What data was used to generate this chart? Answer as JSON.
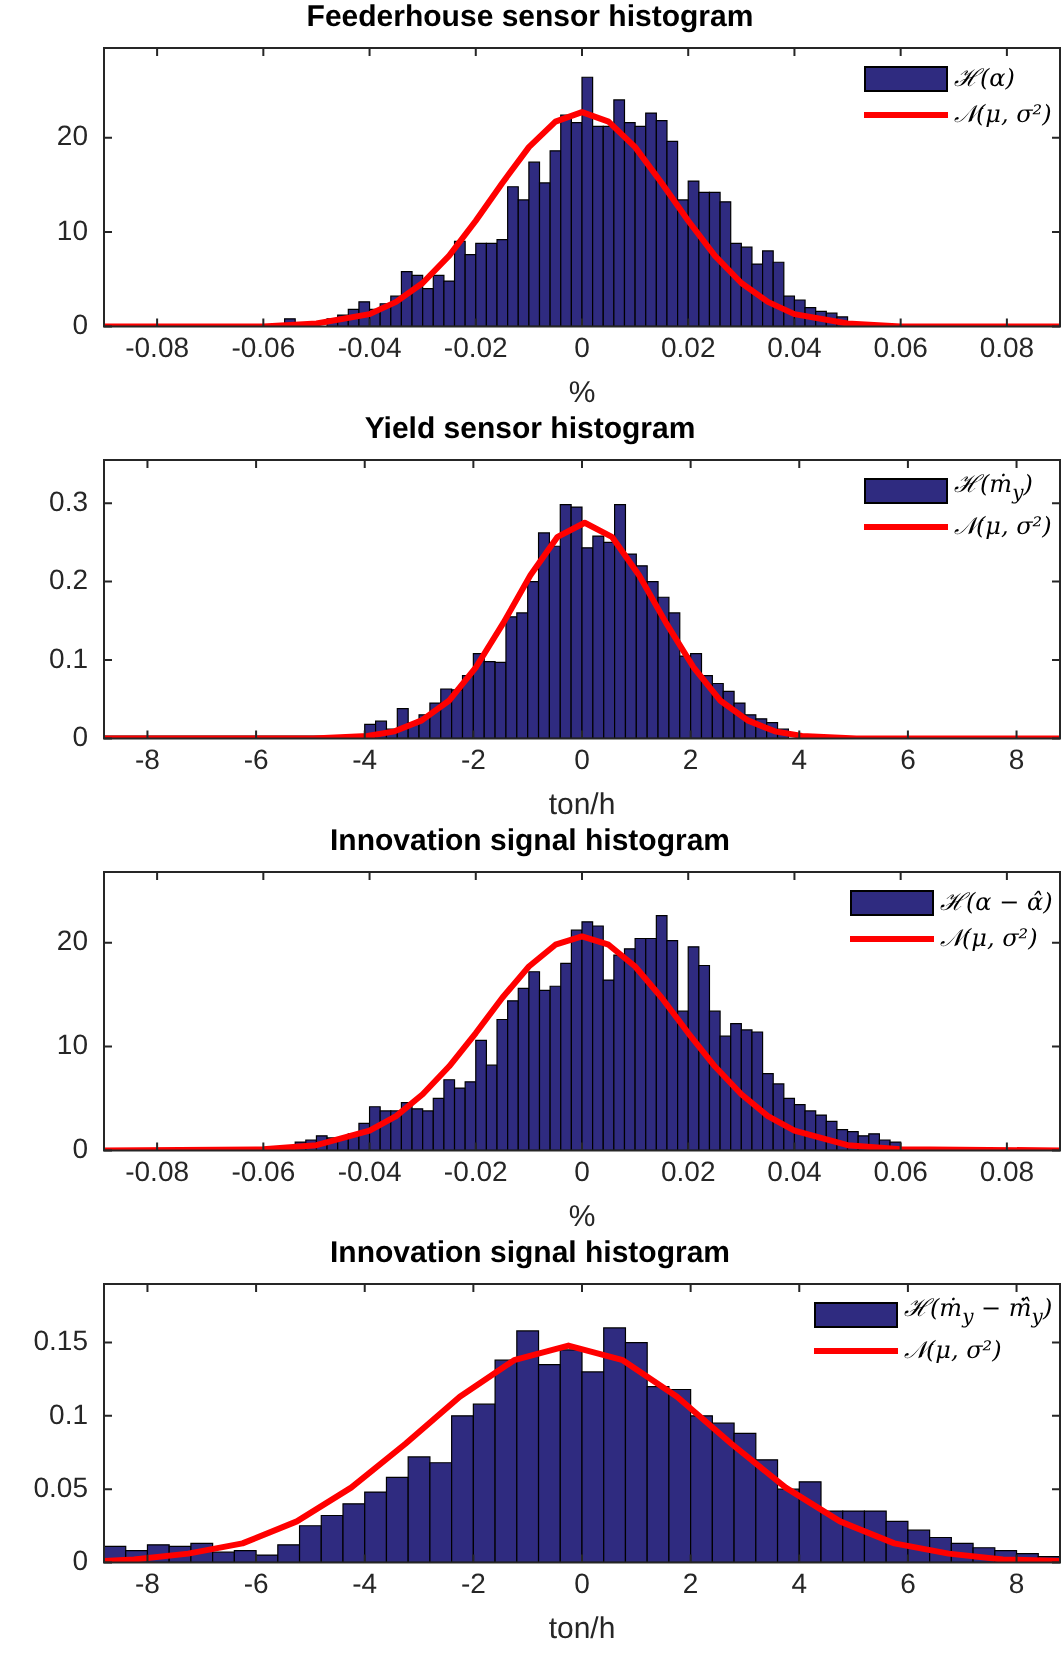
{
  "chart_data": [
    {
      "type": "histogram",
      "title": "Feederhouse sensor histogram",
      "xlabel": "%",
      "xlim": [
        -0.09,
        0.09
      ],
      "xticks": [
        -0.08,
        -0.06,
        -0.04,
        -0.02,
        0,
        0.02,
        0.04,
        0.06,
        0.08
      ],
      "ylim": [
        0,
        29.5
      ],
      "yticks": [
        0,
        10,
        20
      ],
      "legend": "top right",
      "bins": [
        -0.056,
        -0.054,
        -0.048,
        -0.046,
        -0.044,
        -0.042,
        -0.04,
        -0.038,
        -0.036,
        -0.034,
        -0.032,
        -0.03,
        -0.028,
        -0.026,
        -0.024,
        -0.022,
        -0.02,
        -0.018,
        -0.016,
        -0.014,
        -0.012,
        -0.01,
        -0.008,
        -0.006,
        -0.004,
        -0.002,
        0,
        0.002,
        0.004,
        0.006,
        0.008,
        0.01,
        0.012,
        0.014,
        0.016,
        0.018,
        0.02,
        0.022,
        0.024,
        0.026,
        0.028,
        0.03,
        0.032,
        0.034,
        0.036,
        0.038,
        0.04,
        0.042,
        0.044,
        0.046,
        0.048,
        0.05,
        0.054,
        0.056,
        0.058
      ],
      "series": [
        {
          "name": "ℋ(α)",
          "color": "#2f2b80",
          "values": [
            0.8,
            null,
            0.8,
            1.2,
            1.8,
            2.6,
            1.8,
            2.4,
            3.2,
            5.8,
            5.4,
            4.0,
            5.4,
            4.8,
            9.0,
            7.6,
            8.8,
            8.8,
            9.2,
            14.8,
            13.4,
            17.4,
            15.2,
            18.6,
            22.4,
            21.6,
            26.4,
            21.2,
            21.2,
            24.0,
            21.6,
            21.2,
            22.6,
            21.8,
            19.6,
            13.4,
            15.4,
            14.2,
            14.2,
            13.2,
            8.8,
            8.4,
            6.6,
            8.0,
            6.8,
            3.2,
            2.8,
            2.0,
            1.6,
            1.4,
            1.0,
            null,
            0.3,
            0.2
          ]
        },
        {
          "name": "𝒩(μ, σ²)",
          "type": "line",
          "color": "#ff0000",
          "x": [
            -0.09,
            -0.06,
            -0.05,
            -0.04,
            -0.035,
            -0.03,
            -0.025,
            -0.02,
            -0.015,
            -0.01,
            -0.005,
            0,
            0.005,
            0.01,
            0.015,
            0.02,
            0.025,
            0.03,
            0.035,
            0.04,
            0.05,
            0.06,
            0.09
          ],
          "values": [
            0,
            0,
            0.3,
            1.3,
            2.6,
            4.6,
            7.5,
            11.2,
            15.2,
            19.0,
            21.7,
            22.7,
            21.7,
            19.0,
            15.2,
            11.2,
            7.5,
            4.6,
            2.6,
            1.3,
            0.3,
            0,
            0
          ]
        }
      ]
    },
    {
      "type": "histogram",
      "title": "Yield sensor histogram",
      "xlabel": "ton/h",
      "xlim": [
        -8.8,
        8.8
      ],
      "xticks": [
        -8,
        -6,
        -4,
        -2,
        0,
        2,
        4,
        6,
        8
      ],
      "ylim": [
        0,
        0.355
      ],
      "yticks": [
        0,
        0.1,
        0.2,
        0.3
      ],
      "legend": "top right",
      "bins": [
        -8.8,
        -4.4,
        -4.2,
        -4.0,
        -3.8,
        -3.6,
        -3.4,
        -3.2,
        -3.0,
        -2.8,
        -2.6,
        -2.4,
        -2.2,
        -2.0,
        -1.8,
        -1.6,
        -1.4,
        -1.2,
        -1.0,
        -0.8,
        -0.6,
        -0.4,
        -0.2,
        0,
        0.2,
        0.4,
        0.6,
        0.8,
        1.0,
        1.2,
        1.4,
        1.6,
        1.8,
        2.0,
        2.2,
        2.4,
        2.6,
        2.8,
        3.0,
        3.2,
        3.4,
        3.6,
        3.8,
        4.2,
        4.4,
        8.8
      ],
      "series": [
        {
          "name": "ℋ(ṁ$_{y}$)",
          "color": "#2f2b80",
          "values": [
            0.003,
            0.003,
            null,
            0.018,
            0.022,
            0.012,
            0.038,
            0.02,
            0.03,
            0.045,
            0.063,
            0.062,
            0.08,
            0.108,
            0.098,
            0.097,
            0.155,
            0.16,
            0.2,
            0.262,
            0.245,
            0.298,
            0.295,
            0.243,
            0.258,
            0.25,
            0.298,
            0.235,
            0.22,
            0.2,
            0.18,
            0.16,
            0.105,
            0.108,
            0.08,
            0.07,
            0.06,
            0.045,
            0.03,
            0.025,
            0.02,
            0.012,
            null,
            0.003,
            0.002
          ]
        },
        {
          "name": "𝒩(μ, σ²)",
          "type": "line",
          "color": "#ff0000",
          "x": [
            -8.8,
            -4.95,
            -3.95,
            -3.45,
            -2.95,
            -2.45,
            -1.95,
            -1.45,
            -0.95,
            -0.45,
            0.05,
            0.55,
            1.05,
            1.55,
            2.05,
            2.55,
            3.05,
            3.55,
            4.05,
            5.05,
            8.8
          ],
          "values": [
            0,
            0,
            0.003,
            0.009,
            0.023,
            0.048,
            0.091,
            0.147,
            0.208,
            0.257,
            0.275,
            0.257,
            0.208,
            0.147,
            0.091,
            0.048,
            0.023,
            0.009,
            0.003,
            0,
            0
          ]
        }
      ]
    },
    {
      "type": "histogram",
      "title": "Innovation signal histogram",
      "xlabel": "%",
      "xlim": [
        -0.09,
        0.09
      ],
      "xticks": [
        -0.08,
        -0.06,
        -0.04,
        -0.02,
        0,
        0.02,
        0.04,
        0.06,
        0.08
      ],
      "ylim": [
        0,
        26.8
      ],
      "yticks": [
        0,
        10,
        20
      ],
      "legend": "top right",
      "bins": [
        -0.06,
        -0.058,
        -0.054,
        -0.052,
        -0.05,
        -0.048,
        -0.046,
        -0.044,
        -0.042,
        -0.04,
        -0.038,
        -0.036,
        -0.034,
        -0.032,
        -0.03,
        -0.028,
        -0.026,
        -0.024,
        -0.022,
        -0.02,
        -0.018,
        -0.016,
        -0.014,
        -0.012,
        -0.01,
        -0.008,
        -0.006,
        -0.004,
        -0.002,
        0,
        0.002,
        0.004,
        0.006,
        0.008,
        0.01,
        0.012,
        0.014,
        0.016,
        0.018,
        0.02,
        0.022,
        0.024,
        0.026,
        0.028,
        0.03,
        0.032,
        0.034,
        0.036,
        0.038,
        0.04,
        0.042,
        0.044,
        0.046,
        0.048,
        0.05,
        0.052,
        0.054,
        0.056,
        0.058,
        0.06
      ],
      "series": [
        {
          "name": "ℋ(α − α̂)",
          "color": "#2f2b80",
          "values": [
            0.2,
            null,
            0.8,
            1.0,
            1.4,
            1.2,
            1.2,
            1.6,
            2.6,
            4.2,
            3.8,
            3.8,
            4.6,
            4.0,
            3.8,
            5.0,
            6.8,
            6.0,
            6.6,
            10.6,
            8.2,
            12.6,
            14.4,
            15.6,
            17.2,
            15.4,
            15.8,
            18.0,
            21.2,
            22.0,
            21.6,
            16.4,
            18.8,
            19.4,
            20.4,
            20.4,
            22.6,
            20.2,
            13.4,
            19.6,
            17.8,
            13.4,
            11.0,
            12.2,
            11.6,
            11.4,
            7.4,
            6.4,
            5.0,
            4.4,
            3.8,
            3.4,
            2.8,
            2.0,
            1.8,
            1.4,
            1.6,
            1.0,
            0.8
          ]
        },
        {
          "name": "𝒩(μ, σ²)",
          "type": "line",
          "color": "#ff0000",
          "x": [
            -0.09,
            -0.06,
            -0.05,
            -0.04,
            -0.035,
            -0.03,
            -0.025,
            -0.02,
            -0.015,
            -0.01,
            -0.005,
            0,
            0.005,
            0.01,
            0.015,
            0.02,
            0.025,
            0.03,
            0.035,
            0.04,
            0.05,
            0.06,
            0.09
          ],
          "values": [
            0,
            0.1,
            0.5,
            1.9,
            3.3,
            5.4,
            8.1,
            11.3,
            14.7,
            17.7,
            19.8,
            20.6,
            19.8,
            17.7,
            14.7,
            11.3,
            8.1,
            5.4,
            3.3,
            1.9,
            0.5,
            0.1,
            0
          ]
        }
      ]
    },
    {
      "type": "histogram",
      "title": "Innovation signal histogram",
      "xlabel": "ton/h",
      "xlim": [
        -8.8,
        8.8
      ],
      "xticks": [
        -8,
        -6,
        -4,
        -2,
        0,
        2,
        4,
        6,
        8
      ],
      "ylim": [
        0,
        0.19
      ],
      "yticks": [
        0,
        0.05,
        0.1,
        0.15
      ],
      "legend": "top right",
      "bins": [
        -8.8,
        -8.4,
        -8.0,
        -7.6,
        -7.2,
        -6.8,
        -6.4,
        -6.0,
        -5.6,
        -5.2,
        -4.8,
        -4.4,
        -4.0,
        -3.6,
        -3.2,
        -2.8,
        -2.4,
        -2.0,
        -1.6,
        -1.2,
        -0.8,
        -0.4,
        0,
        0.4,
        0.8,
        1.2,
        1.6,
        2.0,
        2.4,
        2.8,
        3.2,
        3.6,
        4.0,
        4.4,
        4.8,
        5.2,
        5.6,
        6.0,
        6.4,
        6.8,
        7.2,
        7.6,
        8.0,
        8.4,
        8.8
      ],
      "series": [
        {
          "name": "ℋ(ṁ$_{y}$ − ṁ̂$_{y}$)",
          "color": "#2f2b80",
          "values": [
            0.011,
            0.008,
            0.012,
            0.011,
            0.013,
            0.007,
            0.008,
            0.005,
            0.012,
            0.025,
            0.032,
            0.04,
            0.048,
            0.058,
            0.072,
            0.068,
            0.1,
            0.108,
            0.138,
            0.158,
            0.135,
            0.145,
            0.13,
            0.16,
            0.15,
            0.12,
            0.118,
            0.1,
            0.095,
            0.088,
            0.07,
            0.05,
            0.055,
            0.035,
            0.035,
            0.035,
            0.028,
            0.022,
            0.017,
            0.013,
            0.01,
            0.008,
            0.006,
            0.004
          ]
        },
        {
          "name": "𝒩(μ, σ²)",
          "type": "line",
          "color": "#ff0000",
          "x": [
            -8.8,
            -8.25,
            -7.25,
            -6.25,
            -5.25,
            -4.25,
            -3.25,
            -2.25,
            -1.25,
            -0.25,
            0.75,
            1.75,
            2.75,
            3.75,
            4.75,
            5.75,
            6.75,
            7.75,
            8.8
          ],
          "values": [
            0.001,
            0.002,
            0.006,
            0.013,
            0.028,
            0.051,
            0.081,
            0.113,
            0.138,
            0.148,
            0.138,
            0.113,
            0.081,
            0.051,
            0.028,
            0.013,
            0.006,
            0.002,
            0.001
          ]
        }
      ]
    }
  ]
}
